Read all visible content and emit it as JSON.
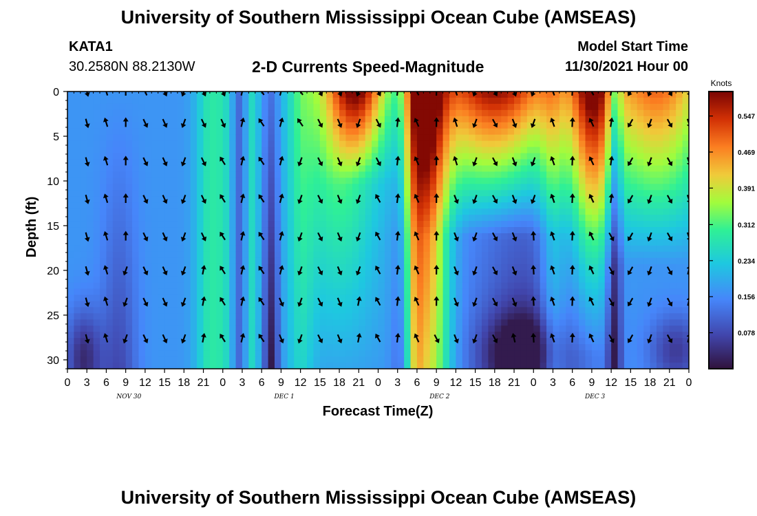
{
  "header": {
    "title": "University of Southern Mississippi Ocean Cube (AMSEAS)",
    "station_id": "KATA1",
    "coordinates": "30.2580N  88.2130W",
    "plot_title": "2-D Currents Speed-Magnitude",
    "model_start_label": "Model Start Time",
    "model_start_value": "11/30/2021 Hour 00"
  },
  "footer": {
    "title": "University of Southern Mississippi Ocean Cube (AMSEAS)"
  },
  "chart_data": {
    "type": "heatmap",
    "title": "2-D Currents Speed-Magnitude",
    "xlabel": "Forecast Time(Z)",
    "ylabel": "Depth (ft)",
    "x_tick_labels": [
      "0",
      "3",
      "6",
      "9",
      "12",
      "15",
      "18",
      "21",
      "0",
      "3",
      "6",
      "9",
      "12",
      "15",
      "18",
      "21",
      "0",
      "3",
      "6",
      "9",
      "12",
      "15",
      "18",
      "21",
      "0",
      "3",
      "6",
      "9",
      "12",
      "15",
      "18",
      "21",
      "0"
    ],
    "x_hours_range": [
      0,
      96
    ],
    "day_labels": [
      {
        "label": "NOV 30",
        "hour": 9.5
      },
      {
        "label": "DEC 1",
        "hour": 33.5
      },
      {
        "label": "DEC 2",
        "hour": 57.5
      },
      {
        "label": "DEC 3",
        "hour": 81.5
      }
    ],
    "y_ticks": [
      0,
      5,
      10,
      15,
      20,
      25,
      30
    ],
    "ylim": [
      0,
      31
    ],
    "y_inverted": true,
    "colorbar": {
      "title": "Knots",
      "ticks": [
        "0.547",
        "0.469",
        "0.391",
        "0.312",
        "0.234",
        "0.156",
        "0.078"
      ],
      "tick_values": [
        0.547,
        0.469,
        0.391,
        0.312,
        0.234,
        0.156,
        0.078
      ],
      "range": [
        0,
        0.6
      ]
    },
    "arrow_depths_ft": [
      0,
      3.5,
      7.8,
      12,
      16.2,
      20,
      23.5,
      27.6
    ],
    "arrow_hours": [
      3,
      6,
      9,
      12,
      15,
      18,
      21,
      24,
      27,
      30,
      33,
      36,
      39,
      42,
      45,
      48,
      51,
      54,
      57,
      60,
      63,
      66,
      69,
      72,
      75,
      78,
      81,
      84,
      87,
      90,
      93,
      96
    ]
  }
}
